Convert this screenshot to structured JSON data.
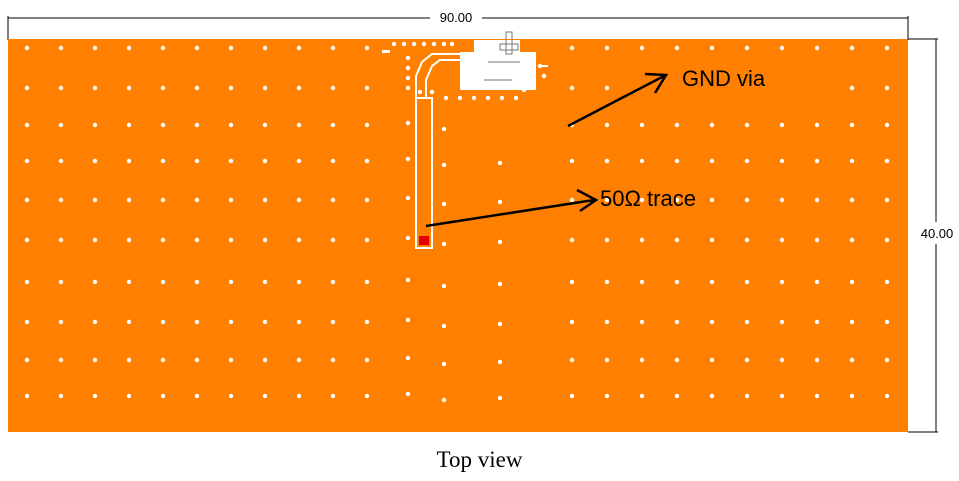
{
  "diagram": {
    "board_width_label": "90.00",
    "board_height_label": "40.00",
    "annotations": {
      "gnd_via": "GND via",
      "trace": "50Ω trace"
    },
    "caption": "Top view"
  },
  "colors": {
    "board": "#ff8000",
    "via": "#ffffff",
    "trace": "#ffffff",
    "feed": "#e00000",
    "line": "#000000"
  }
}
